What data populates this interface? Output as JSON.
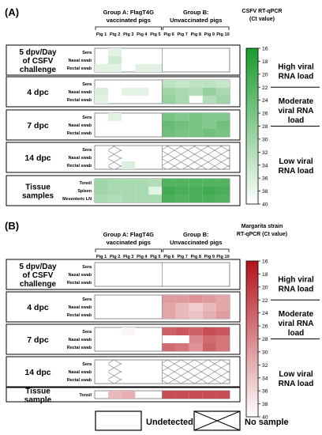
{
  "chart_data": [
    {
      "panel_label": "(A)",
      "type": "heatmap",
      "group_a_label": [
        "Group A: FlagT4G",
        "vaccinated pigs"
      ],
      "group_b_label": [
        "Group B:",
        "Unvaccinated pigs"
      ],
      "columns": [
        "Pig 1",
        "Pig 2",
        "Pig 3",
        "Pig 4",
        "Pig 5",
        "Pig 6",
        "Pig 7",
        "Pig 8",
        "Pig 9",
        "Pig 10"
      ],
      "colorbar_title": [
        "CSFV RT-qPCR",
        "(Ct value)"
      ],
      "colorbar_range": [
        16,
        40
      ],
      "colorbar_ticks": [
        "16",
        "18",
        "20",
        "22",
        "24",
        "26",
        "28",
        "30",
        "32",
        "34",
        "36",
        "38",
        "40"
      ],
      "color_high": "#1a9a2c",
      "load_labels": [
        {
          "lines": [
            "High viral",
            "RNA load"
          ],
          "ct": 19.5
        },
        {
          "lines": [
            "Moderate",
            "viral RNA",
            "load"
          ],
          "ct": 25.5
        },
        {
          "lines": [
            "Low viral",
            "RNA load"
          ],
          "ct": 34
        }
      ],
      "load_dividers": [
        22,
        28
      ],
      "sections": [
        {
          "title": [
            "5 dpv/Day",
            "of CSFV",
            "challenge"
          ],
          "rows": [
            {
              "label": "Sera",
              "ct": [
                null,
                37,
                null,
                null,
                null,
                null,
                null,
                null,
                null,
                null
              ]
            },
            {
              "label": "Nasal swab",
              "ct": [
                null,
                35,
                null,
                null,
                null,
                null,
                null,
                null,
                null,
                null
              ]
            },
            {
              "label": "Rectal swab",
              "ct": [
                37,
                37,
                null,
                37,
                37,
                null,
                null,
                null,
                null,
                null
              ]
            }
          ]
        },
        {
          "title": [
            "4 dpc"
          ],
          "rows": [
            {
              "label": "Sera",
              "ct": [
                null,
                null,
                null,
                null,
                null,
                33,
                34,
                33,
                33,
                34
              ]
            },
            {
              "label": "Nasal swab",
              "ct": [
                36,
                null,
                37,
                37,
                null,
                30,
                31,
                32,
                29,
                31
              ]
            },
            {
              "label": "Rectal swab",
              "ct": [
                37,
                null,
                null,
                null,
                null,
                29,
                31,
                null,
                32,
                30
              ]
            }
          ]
        },
        {
          "title": [
            "7 dpc"
          ],
          "rows": [
            {
              "label": "Sera",
              "ct": [
                null,
                37,
                null,
                null,
                null,
                26,
                27,
                26,
                27,
                27
              ]
            },
            {
              "label": "Nasal swab",
              "ct": [
                null,
                null,
                null,
                null,
                null,
                24,
                25,
                26,
                27,
                25
              ]
            },
            {
              "label": "Rectal swab",
              "ct": [
                null,
                null,
                null,
                null,
                null,
                25,
                26,
                26,
                25,
                26
              ]
            }
          ]
        },
        {
          "title": [
            "14 dpc"
          ],
          "rows": [
            {
              "label": "Sera",
              "ct": [
                null,
                "x",
                null,
                null,
                null,
                "x",
                "x",
                "x",
                "x",
                "x"
              ]
            },
            {
              "label": "Nasal swab",
              "ct": [
                null,
                "x",
                null,
                null,
                null,
                "x",
                "x",
                "x",
                "x",
                "x"
              ]
            },
            {
              "label": "Rectal swab",
              "ct": [
                null,
                "x",
                36,
                null,
                null,
                "x",
                "x",
                "x",
                "x",
                "x"
              ]
            }
          ]
        },
        {
          "title": [
            "Tissue",
            "samples"
          ],
          "rows": [
            {
              "label": "Tonsil",
              "ct": [
                30,
                31,
                31,
                31,
                32,
                22,
                22,
                22,
                22,
                22
              ]
            },
            {
              "label": "Spleen",
              "ct": [
                30,
                31,
                31,
                31,
                37,
                20,
                21,
                21,
                20,
                21
              ]
            },
            {
              "label": "Mesenteric LN",
              "ct": [
                31,
                32,
                31,
                31,
                31,
                21,
                22,
                21,
                21,
                22
              ]
            }
          ]
        }
      ]
    },
    {
      "panel_label": "(B)",
      "type": "heatmap",
      "group_a_label": [
        "Group A: FlagT4G",
        "vaccinated pigs"
      ],
      "group_b_label": [
        "Group B:",
        "Unvaccinated pigs"
      ],
      "columns": [
        "Pig 1",
        "Pig 2",
        "Pig 3",
        "Pig 4",
        "Pig 5",
        "Pig 6",
        "Pig 7",
        "Pig 8",
        "Pig 9",
        "Pig 10"
      ],
      "colorbar_title": [
        "Margarita strain",
        "RT-qPCR (Ct value)"
      ],
      "colorbar_range": [
        16,
        40
      ],
      "colorbar_ticks": [
        "16",
        "18",
        "20",
        "22",
        "24",
        "26",
        "28",
        "30",
        "32",
        "34",
        "36",
        "38",
        "40"
      ],
      "color_high": "#b3121a",
      "load_labels": [
        {
          "lines": [
            "High viral",
            "RNA load"
          ],
          "ct": 19.5
        },
        {
          "lines": [
            "Moderate",
            "viral RNA",
            "load"
          ],
          "ct": 25.5
        },
        {
          "lines": [
            "Low viral",
            "RNA load"
          ],
          "ct": 34
        }
      ],
      "load_dividers": [
        22,
        28
      ],
      "sections": [
        {
          "title": [
            "5 dpv/Day",
            "of CSFV",
            "challenge"
          ],
          "rows": [
            {
              "label": "Sera",
              "ct": [
                null,
                null,
                null,
                null,
                null,
                null,
                null,
                null,
                null,
                null
              ]
            },
            {
              "label": "Nasal swab",
              "ct": [
                null,
                null,
                null,
                null,
                null,
                null,
                null,
                null,
                null,
                null
              ]
            },
            {
              "label": "Rectal swab",
              "ct": [
                null,
                null,
                null,
                null,
                null,
                null,
                null,
                null,
                null,
                null
              ]
            }
          ]
        },
        {
          "title": [
            "4 dpc"
          ],
          "rows": [
            {
              "label": "Sera",
              "ct": [
                null,
                null,
                null,
                null,
                null,
                30,
                30,
                29,
                30,
                31
              ]
            },
            {
              "label": "Nasal swab",
              "ct": [
                null,
                null,
                null,
                null,
                null,
                31,
                33,
                35,
                33,
                31
              ]
            },
            {
              "label": "Rectal swab",
              "ct": [
                null,
                null,
                null,
                null,
                null,
                31,
                33,
                34,
                32,
                30
              ]
            }
          ]
        },
        {
          "title": [
            "7 dpc"
          ],
          "rows": [
            {
              "label": "Sera",
              "ct": [
                null,
                null,
                39,
                null,
                null,
                24,
                23,
                24,
                22,
                23
              ]
            },
            {
              "label": "Nasal swab",
              "ct": [
                null,
                null,
                null,
                null,
                null,
                null,
                null,
                28,
                25,
                26
              ]
            },
            {
              "label": "Rectal swab",
              "ct": [
                null,
                null,
                null,
                null,
                null,
                25,
                26,
                29,
                24,
                26
              ]
            }
          ]
        },
        {
          "title": [
            "14 dpc"
          ],
          "rows": [
            {
              "label": "Sera",
              "ct": [
                null,
                "x",
                null,
                null,
                null,
                "x",
                "x",
                "x",
                "x",
                "x"
              ]
            },
            {
              "label": "Nasal swab",
              "ct": [
                null,
                "x",
                null,
                null,
                null,
                "x",
                "x",
                "x",
                "x",
                "x"
              ]
            },
            {
              "label": "Rectal swab",
              "ct": [
                null,
                "x",
                null,
                null,
                null,
                "x",
                "x",
                "x",
                "x",
                "x"
              ]
            }
          ]
        },
        {
          "title": [
            "Tissue",
            "sample"
          ],
          "rows": [
            {
              "label": "Tonsil",
              "ct": [
                null,
                33,
                32,
                null,
                null,
                22,
                22,
                22,
                22,
                22
              ]
            }
          ]
        }
      ]
    }
  ],
  "legend": {
    "undetected": "Undetected",
    "no_sample": "No sample"
  }
}
